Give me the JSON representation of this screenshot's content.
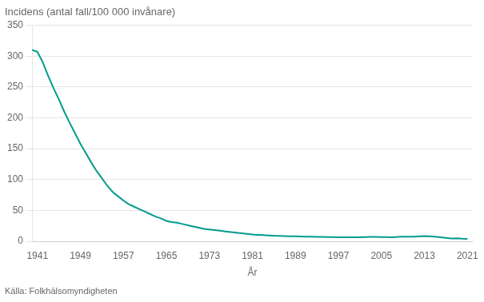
{
  "chart_data": {
    "type": "line",
    "title": "Incidens (antal fall/100 000 invånare)",
    "xlabel": "År",
    "source": "Källa: Folkhälsomyndigheten",
    "color": "#009B8D",
    "grid": "y",
    "xlim": [
      1940,
      2022
    ],
    "xticks": [
      1941,
      1949,
      1957,
      1965,
      1973,
      1981,
      1989,
      1997,
      2005,
      2013,
      2021
    ],
    "ylim": [
      0,
      350
    ],
    "yticks": [
      0,
      50,
      100,
      150,
      200,
      250,
      300,
      350
    ],
    "x": [
      1940,
      1941,
      1942,
      1943,
      1944,
      1945,
      1946,
      1947,
      1948,
      1949,
      1950,
      1951,
      1952,
      1953,
      1954,
      1955,
      1956,
      1957,
      1958,
      1959,
      1960,
      1961,
      1962,
      1963,
      1964,
      1965,
      1966,
      1967,
      1968,
      1969,
      1970,
      1971,
      1972,
      1973,
      1974,
      1975,
      1976,
      1977,
      1978,
      1979,
      1980,
      1981,
      1982,
      1983,
      1984,
      1985,
      1986,
      1987,
      1988,
      1989,
      1990,
      1991,
      1992,
      1993,
      1994,
      1995,
      1996,
      1997,
      1998,
      1999,
      2000,
      2001,
      2002,
      2003,
      2004,
      2005,
      2006,
      2007,
      2008,
      2009,
      2010,
      2011,
      2012,
      2013,
      2014,
      2015,
      2016,
      2017,
      2018,
      2019,
      2020,
      2021
    ],
    "values": [
      310,
      307,
      290,
      268,
      248,
      230,
      210,
      192,
      175,
      158,
      143,
      128,
      114,
      102,
      90,
      80,
      73,
      66,
      60,
      56,
      52,
      48,
      44,
      40,
      37,
      33,
      31,
      30,
      28,
      26,
      24,
      22,
      20,
      19,
      18,
      17,
      16,
      15,
      14,
      13,
      12,
      11,
      10.5,
      10,
      9.5,
      9,
      8.8,
      8.5,
      8.2,
      8,
      7.8,
      7.5,
      7.3,
      7.2,
      7.0,
      6.8,
      6.7,
      6.5,
      6.4,
      6.5,
      6.6,
      6.5,
      6.8,
      7.0,
      7.0,
      6.8,
      6.7,
      6.6,
      7.0,
      7.5,
      7.5,
      7.5,
      8.0,
      8.5,
      8.0,
      7.5,
      6.5,
      5.5,
      4.5,
      4.8,
      4.2,
      4.0
    ]
  }
}
